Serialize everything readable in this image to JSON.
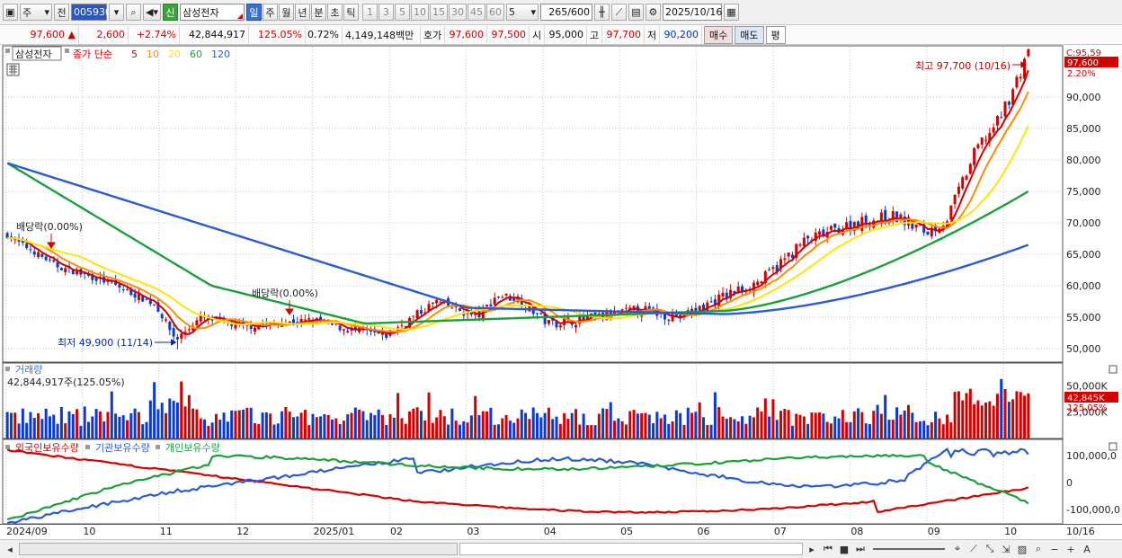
{
  "toolbar": {
    "period": "주",
    "prev": "전",
    "code": "005930",
    "badge": "신",
    "name": "삼성전자",
    "tf": [
      {
        "label": "일",
        "active": true
      },
      {
        "label": "주",
        "active": false
      },
      {
        "label": "월",
        "active": false
      },
      {
        "label": "년",
        "active": false
      },
      {
        "label": "분",
        "active": false
      },
      {
        "label": "초",
        "active": false
      },
      {
        "label": "틱",
        "active": false
      }
    ],
    "nums": [
      "1",
      "3",
      "5",
      "10",
      "15",
      "30",
      "45",
      "60"
    ],
    "n_sel": "5",
    "count": "265",
    "count_total": "/600",
    "date": "2025/10/16"
  },
  "info": {
    "price": "97,600",
    "change": "2,600",
    "change_pct": "+2.74%",
    "volume": "42,844,917",
    "vol_ratio": "125.05%",
    "turnover": "0.72%",
    "amount": "4,149,148백만",
    "quote_label": "호가",
    "ask": "97,600",
    "bid": "97,500",
    "open_label": "시",
    "open": "95,000",
    "high_label": "고",
    "high": "97,700",
    "low_label": "저",
    "low": "90,200",
    "buy": "매수",
    "sell": "매도",
    "eval": "평"
  },
  "chart_data": [
    {
      "type": "candlestick",
      "title": "삼성전자",
      "legend": {
        "label": "종가 단순",
        "periods": [
          "5",
          "10",
          "20",
          "60",
          "120"
        ],
        "colors": [
          "#d40000",
          "#ff8c00",
          "#ffe600",
          "#1aa03a",
          "#2a5ad8"
        ]
      },
      "ylim": [
        48000,
        98000
      ],
      "yticks": [
        "90,000",
        "85,000",
        "80,000",
        "75,000",
        "70,000",
        "65,000",
        "60,000",
        "55,000",
        "50,000"
      ],
      "ytick_values": [
        90000,
        85000,
        80000,
        75000,
        70000,
        65000,
        60000,
        55000,
        50000
      ],
      "top_label": "C:95,59",
      "price_badge": "97,600",
      "pct_badge": "2.20%",
      "annotations": [
        {
          "text": "배당락(0.00%)"
        },
        {
          "text": "배당락(0.00%)"
        },
        {
          "text": "최저 49,900 (11/14)"
        },
        {
          "text": "최고 97,700 (10/16)"
        }
      ],
      "anchors": {
        "start_close": 68000,
        "low": 49900,
        "high": 97700,
        "last_close": 97600,
        "ma120_start": 79500,
        "ma120_end": 66500,
        "ma60_end": 75000
      }
    },
    {
      "type": "bar",
      "title": "거래량",
      "value_label": "42,844,917주(125.05%)",
      "yticks": [
        "50,000K",
        "25,000K"
      ],
      "ytick_values": [
        50000,
        25000
      ],
      "last_badge": "42,845K",
      "pct_badge": "125.05%",
      "ylim": [
        0,
        70000
      ]
    },
    {
      "type": "line",
      "series": [
        {
          "name": "외국인보유수량",
          "color": "#d40000"
        },
        {
          "name": "기관보유수량",
          "color": "#2a5ad8"
        },
        {
          "name": "개인보유수량",
          "color": "#1aa03a"
        }
      ],
      "yticks": [
        "100,000,0",
        "0",
        "-100,000,0"
      ],
      "ytick_values": [
        100000,
        0,
        -100000
      ],
      "ylim": [
        -150000,
        150000
      ]
    }
  ],
  "x_labels": [
    "2024/09",
    "10",
    "11",
    "12",
    "2025/01",
    "02",
    "03",
    "04",
    "05",
    "06",
    "07",
    "08",
    "09",
    "10"
  ],
  "x_last": "10/16",
  "colors": {
    "up": "#d40000",
    "down": "#0a3ad0"
  }
}
